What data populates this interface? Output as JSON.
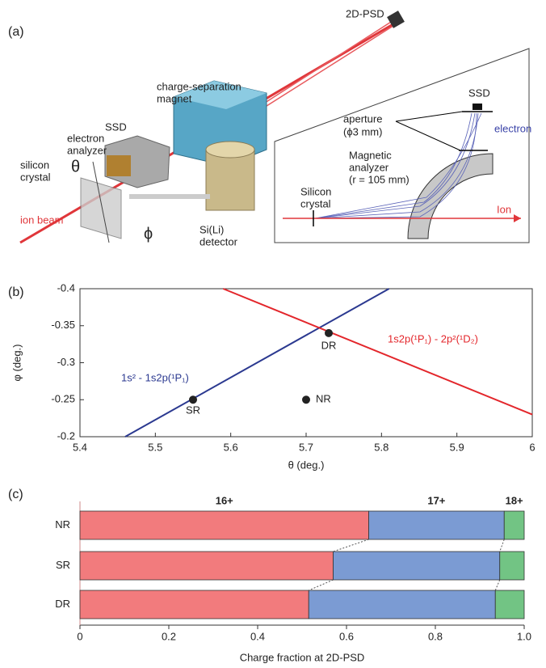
{
  "panel_labels": [
    "(a)",
    "(b)",
    "(c)"
  ],
  "diagram": {
    "psd": "2D-PSD",
    "magnet": [
      "charge-separation",
      "magnet"
    ],
    "analyzer": [
      "electron",
      "analyzer"
    ],
    "ssd": "SSD",
    "theta": "θ",
    "crystal": [
      "silicon",
      "crystal"
    ],
    "beam": "ion beam",
    "phi": "ϕ",
    "detector": [
      "Si(Li)",
      "detector"
    ],
    "inset": {
      "ssd": "SSD",
      "aperture": [
        "aperture",
        "(ϕ3 mm)"
      ],
      "electron": "electron",
      "magnetic": [
        "Magnetic",
        "analyzer",
        "(r = 105 mm)"
      ],
      "crystal": [
        "Silicon",
        "crystal"
      ],
      "ion": "Ion"
    }
  },
  "chart_data": [
    {
      "type": "line",
      "xlabel": "θ (deg.)",
      "ylabel": "φ (deg.)",
      "xlim": [
        5.4,
        6
      ],
      "ylim": [
        -0.2,
        -0.4
      ],
      "xticks": [
        5.4,
        5.5,
        5.6,
        5.7,
        5.8,
        5.9,
        6
      ],
      "yticks": [
        -0.4,
        -0.35,
        -0.3,
        -0.25,
        -0.2
      ],
      "series": [
        {
          "name": "1s² - 1s2p(¹P₁)",
          "color": "#2b3990",
          "x": [
            5.46,
            5.81
          ],
          "values": [
            -0.2,
            -0.4
          ]
        },
        {
          "name": "1s2p(¹P₁) - 2p²(¹D₂)",
          "color": "#e3262b",
          "x": [
            5.59,
            6
          ],
          "values": [
            -0.4,
            -0.23
          ]
        }
      ],
      "points": {
        "labels": [
          "SR",
          "DR",
          "NR"
        ],
        "x": [
          5.55,
          5.73,
          5.7
        ],
        "values": [
          -0.25,
          -0.34,
          -0.25
        ],
        "color": "#222222"
      }
    },
    {
      "type": "hbar",
      "xlabel": "Charge fraction at 2D-PSD",
      "categories": [
        "NR",
        "SR",
        "DR"
      ],
      "xlim": [
        0,
        1
      ],
      "xticks": [
        0,
        0.2,
        0.4,
        0.6,
        0.8,
        {
          "value": 1,
          "label": "1.0"
        }
      ],
      "series": [
        {
          "name": "16+",
          "color": "#f27b7d",
          "values": [
            0.65,
            0.57,
            0.515
          ]
        },
        {
          "name": "17+",
          "color": "#7b9bd3",
          "values": [
            0.305,
            0.375,
            0.42
          ]
        },
        {
          "name": "18+",
          "color": "#72c484",
          "values": [
            0.045,
            0.055,
            0.065
          ]
        }
      ]
    }
  ]
}
